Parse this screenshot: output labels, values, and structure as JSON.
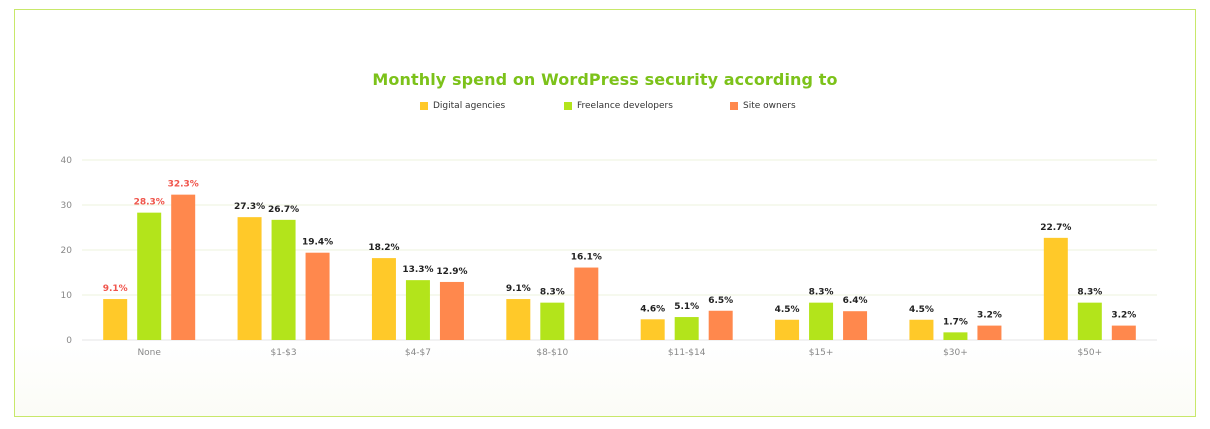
{
  "chart_data": {
    "type": "bar",
    "title": "Monthly spend on WordPress security according to",
    "categories": [
      "None",
      "$1-$3",
      "$4-$7",
      "$8-$10",
      "$11-$14",
      "$15+",
      "$30+",
      "$50+"
    ],
    "series": [
      {
        "name": "Digital agencies",
        "color": "#ffc929",
        "values": [
          9.1,
          27.3,
          18.2,
          9.1,
          4.6,
          4.5,
          4.5,
          22.7
        ]
      },
      {
        "name": "Freelance developers",
        "color": "#b3e41b",
        "values": [
          28.3,
          26.7,
          13.3,
          8.3,
          5.1,
          8.3,
          1.7,
          8.3
        ]
      },
      {
        "name": "Site owners",
        "color": "#ff884d",
        "values": [
          32.3,
          19.4,
          12.9,
          16.1,
          6.5,
          6.4,
          3.2,
          3.2
        ]
      }
    ],
    "value_labels": [
      [
        "9.1%",
        "27.3%",
        "18.2%",
        "9.1%",
        "4.6%",
        "4.5%",
        "4.5%",
        "22.7%"
      ],
      [
        "28.3%",
        "26.7%",
        "13.3%",
        "8.3%",
        "5.1%",
        "8.3%",
        "1.7%",
        "8.3%"
      ],
      [
        "32.3%",
        "19.4%",
        "12.9%",
        "16.1%",
        "6.5%",
        "6.4%",
        "3.2%",
        "3.2%"
      ]
    ],
    "highlight_label_color": "#f0544b",
    "highlight_category": "None",
    "ylim": [
      0,
      40
    ],
    "yticks": [
      "0",
      "10",
      "20",
      "30",
      "40"
    ],
    "grid": true,
    "legend_position": "top-center"
  }
}
